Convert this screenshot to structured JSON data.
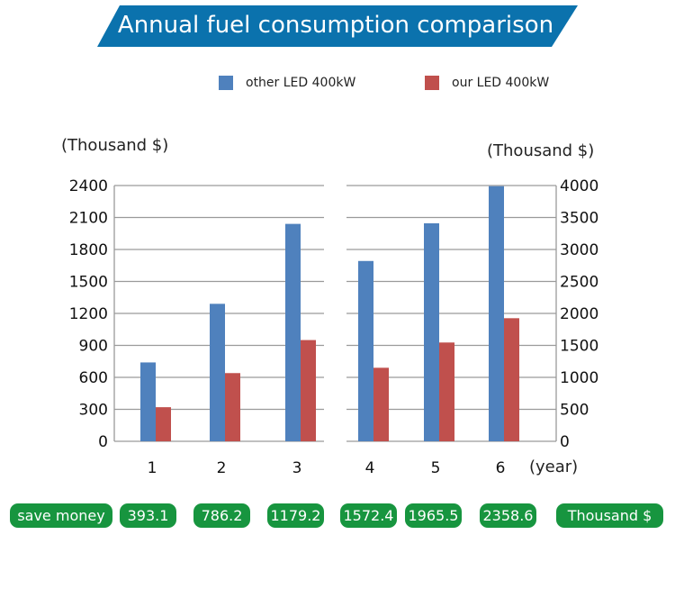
{
  "banner": {
    "title": "Annual fuel consumption comparison",
    "color": "#0b72ad"
  },
  "legend": [
    {
      "label": "other  LED 400kW",
      "color": "#4f81bd"
    },
    {
      "label": "our  LED 400kW",
      "color": "#c0504d"
    }
  ],
  "chart_data": [
    {
      "type": "bar",
      "title": "Annual fuel consumption comparison",
      "ylabel": "(Thousand $)",
      "xlabel": "",
      "categories": [
        "1",
        "2",
        "3"
      ],
      "ylim": [
        0,
        2400
      ],
      "yticks": [
        "0",
        "300",
        "600",
        "900",
        "1200",
        "1500",
        "1800",
        "2100",
        "2400"
      ],
      "grid": true,
      "legend_position": "top-right",
      "series": [
        {
          "name": "other  LED 400kW",
          "color": "#4f81bd",
          "values": [
            740,
            1290,
            2040
          ]
        },
        {
          "name": "our  LED 400kW",
          "color": "#c0504d",
          "values": [
            320,
            640,
            950
          ]
        }
      ]
    },
    {
      "type": "bar",
      "ylabel": "(Thousand $)",
      "xlabel": "(year)",
      "categories": [
        "4",
        "5",
        "6"
      ],
      "ylim": [
        0,
        4000
      ],
      "yticks": [
        "0",
        "500",
        "1000",
        "1500",
        "2000",
        "2500",
        "3000",
        "3500",
        "4000"
      ],
      "grid": true,
      "y_axis_side": "right",
      "series": [
        {
          "name": "other  LED 400kW",
          "color": "#4f81bd",
          "values": [
            2820,
            3410,
            3990
          ]
        },
        {
          "name": "our  LED 400kW",
          "color": "#c0504d",
          "values": [
            1150,
            1545,
            1925
          ]
        }
      ]
    }
  ],
  "savings": {
    "label": "save money",
    "values": [
      "393.1",
      "786.2",
      "1179.2",
      "1572.4",
      "1965.5",
      "2358.6"
    ],
    "unit": "Thousand $",
    "color": "#17953f"
  }
}
